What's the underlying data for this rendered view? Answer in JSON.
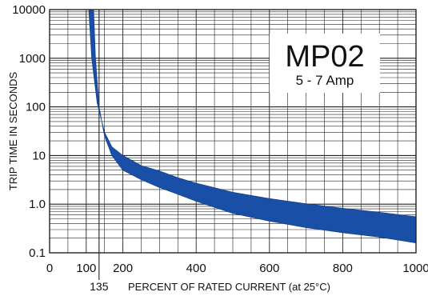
{
  "chart_data": {
    "type": "area",
    "title": "MP02",
    "subtitle": "5 - 7 Amp",
    "xlabel": "PERCENT OF RATED CURRENT (at 25°C)",
    "ylabel": "TRIP TIME IN SECONDS",
    "xlim": [
      0,
      1000
    ],
    "ylim": [
      0.1,
      10000
    ],
    "y_scale": "log",
    "grid": true,
    "x_ticks": [
      0,
      100,
      200,
      400,
      600,
      800,
      1000
    ],
    "x_tick_labels": [
      "0",
      "100",
      "200",
      "400",
      "600",
      "800",
      "1000"
    ],
    "x_extra_tick": {
      "value": 135,
      "label": "135"
    },
    "y_ticks": [
      0.1,
      1,
      10,
      100,
      1000,
      10000
    ],
    "y_tick_labels": [
      "0.1",
      "1.0",
      "10",
      "100",
      "1000",
      "10000"
    ],
    "series": [
      {
        "name": "",
        "x": [
          107,
          115,
          130,
          150,
          170,
          200,
          250,
          300,
          350,
          400,
          500,
          600,
          700,
          800,
          900,
          1000
        ],
        "values": [
          10000,
          1000,
          120,
          30,
          15,
          10,
          6.2,
          4.8,
          3.5,
          2.7,
          1.75,
          1.3,
          1.02,
          0.82,
          0.68,
          0.55
        ]
      },
      {
        "name": "",
        "x": [
          120,
          125,
          135,
          150,
          170,
          200,
          250,
          300,
          350,
          400,
          500,
          600,
          700,
          800,
          900,
          1000
        ],
        "values": [
          10000,
          1000,
          100,
          25,
          10,
          5,
          3.2,
          2.2,
          1.6,
          1.15,
          0.65,
          0.45,
          0.33,
          0.26,
          0.21,
          0.16
        ]
      }
    ],
    "band_color": "#1a4fa8"
  }
}
